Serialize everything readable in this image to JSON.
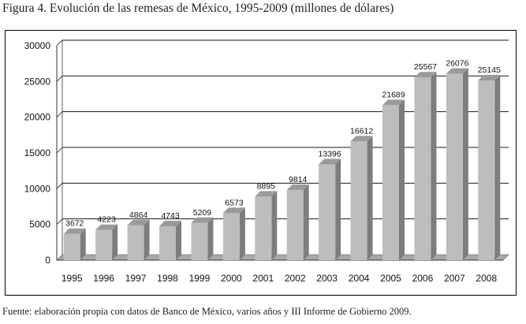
{
  "figure": {
    "title": "Figura 4. Evolución de las remesas de México, 1995-2009 (millones de dólares)",
    "source": "Fuente: elaboración propia con datos de Banco de México, varios años y III Informe de Gobierno 2009."
  },
  "colors": {
    "bar_front": "#bdbdbd",
    "bar_side": "#7d7d7d",
    "bar_top": "#9a9a9a",
    "gridline": "#1a1a1a",
    "wall": "#ffffff",
    "floor": "#a8a8a8"
  },
  "chart_data": {
    "type": "bar",
    "title": "",
    "xlabel": "",
    "ylabel": "",
    "ylim": [
      0,
      30000
    ],
    "yticks": [
      0,
      5000,
      10000,
      15000,
      20000,
      25000,
      30000
    ],
    "grid": true,
    "categories": [
      "1995",
      "1996",
      "1997",
      "1998",
      "1999",
      "2000",
      "2001",
      "2002",
      "2003",
      "2004",
      "2005",
      "2006",
      "2007",
      "2008"
    ],
    "values": [
      3672,
      4223,
      4864,
      4743,
      5209,
      6573,
      8895,
      9814,
      13396,
      16612,
      21689,
      25567,
      26076,
      25145
    ],
    "data_labels": [
      "3672",
      "4223",
      "4864",
      "4743",
      "5209",
      "6573",
      "8895",
      "9814",
      "13396",
      "16612",
      "21689",
      "25567",
      "26076",
      "25145"
    ]
  }
}
